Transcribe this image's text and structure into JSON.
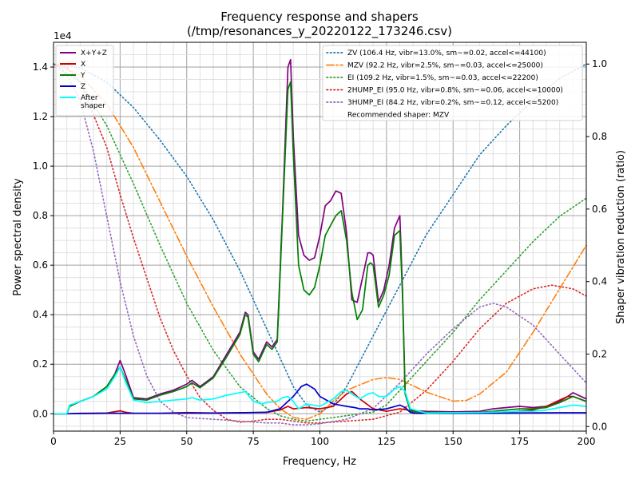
{
  "chart_data": {
    "type": "line",
    "title": "Frequency response and shapers",
    "subtitle": "(/tmp/resonances_y_20220122_173246.csv)",
    "xlabel": "Frequency, Hz",
    "ylabel": "Power spectral density",
    "y2label": "Shaper vibration reduction (ratio)",
    "y_exponent_label": "1e4",
    "xlim": [
      0,
      200
    ],
    "ylim": [
      -0.07,
      1.5
    ],
    "y2lim": [
      -0.0125,
      1.06
    ],
    "x_ticks": [
      0,
      25,
      50,
      75,
      100,
      125,
      150,
      175,
      200
    ],
    "y_ticks": [
      0.0,
      0.2,
      0.4,
      0.6,
      0.8,
      1.0,
      1.2,
      1.4
    ],
    "y_tick_labels": [
      "0.0",
      "0.2",
      "0.4",
      "0.6",
      "0.8",
      "1.0",
      "1.2",
      "1.4"
    ],
    "y2_ticks": [
      0.0,
      0.2,
      0.4,
      0.6,
      0.8,
      1.0
    ],
    "y2_tick_labels": [
      "0.0",
      "0.2",
      "0.4",
      "0.6",
      "0.8",
      "1.0"
    ],
    "grid": true,
    "legend_left_placement": "top-left",
    "legend_right_placement": "top-right",
    "recommended_shaper": "Recommended shaper: MZV",
    "psd_series": [
      {
        "name": "X+Y+Z",
        "color": "#800080",
        "x": [
          0,
          5,
          6,
          10,
          15,
          20,
          23,
          25,
          27,
          30,
          35,
          40,
          45,
          50,
          52,
          55,
          60,
          65,
          70,
          72,
          73,
          75,
          77,
          80,
          82,
          84,
          86,
          88,
          89,
          90,
          92,
          94,
          96,
          98,
          100,
          102,
          104,
          106,
          108,
          110,
          112,
          114,
          116,
          118,
          119,
          120,
          122,
          124,
          126,
          128,
          130,
          131,
          132,
          134,
          136,
          140,
          150,
          160,
          165,
          170,
          175,
          180,
          185,
          190,
          193,
          195,
          200
        ],
        "y": [
          0,
          0,
          0.03,
          0.05,
          0.07,
          0.11,
          0.16,
          0.215,
          0.16,
          0.065,
          0.06,
          0.08,
          0.095,
          0.12,
          0.135,
          0.11,
          0.15,
          0.24,
          0.33,
          0.41,
          0.4,
          0.25,
          0.22,
          0.29,
          0.27,
          0.3,
          0.82,
          1.4,
          1.43,
          1.12,
          0.72,
          0.64,
          0.62,
          0.63,
          0.72,
          0.84,
          0.86,
          0.9,
          0.89,
          0.73,
          0.46,
          0.45,
          0.55,
          0.65,
          0.65,
          0.64,
          0.45,
          0.5,
          0.6,
          0.75,
          0.8,
          0.5,
          0.09,
          0.015,
          0.012,
          0.01,
          0.008,
          0.01,
          0.02,
          0.025,
          0.03,
          0.025,
          0.03,
          0.05,
          0.07,
          0.085,
          0.06
        ]
      },
      {
        "name": "X",
        "color": "#cc0000",
        "x": [
          0,
          5,
          10,
          20,
          25,
          27,
          30,
          40,
          50,
          60,
          70,
          80,
          85,
          88,
          90,
          95,
          100,
          105,
          110,
          112,
          115,
          120,
          125,
          130,
          133,
          135,
          140,
          150,
          170,
          180,
          185,
          190,
          193,
          195,
          200
        ],
        "y": [
          0,
          0,
          0.002,
          0.003,
          0.012,
          0.006,
          0.002,
          0.002,
          0.005,
          0.003,
          0.004,
          0.005,
          0.015,
          0.03,
          0.02,
          0.025,
          0.02,
          0.03,
          0.08,
          0.09,
          0.06,
          0.02,
          0.01,
          0.02,
          0.015,
          0.002,
          0.003,
          0.004,
          0.006,
          0.015,
          0.03,
          0.055,
          0.07,
          0.07,
          0.05
        ]
      },
      {
        "name": "Y",
        "color": "#008000",
        "x": [
          0,
          5,
          6,
          10,
          15,
          20,
          23,
          25,
          27,
          30,
          35,
          40,
          45,
          50,
          52,
          55,
          60,
          65,
          70,
          72,
          73,
          75,
          77,
          80,
          82,
          84,
          86,
          88,
          89,
          90,
          92,
          94,
          96,
          98,
          100,
          102,
          104,
          106,
          108,
          110,
          112,
          114,
          116,
          118,
          119,
          120,
          122,
          124,
          126,
          128,
          130,
          131,
          132,
          134,
          136,
          140,
          150,
          160,
          165,
          170,
          175,
          180,
          185,
          190,
          193,
          195,
          200
        ],
        "y": [
          0,
          0,
          0.03,
          0.05,
          0.07,
          0.11,
          0.16,
          0.19,
          0.14,
          0.06,
          0.055,
          0.075,
          0.09,
          0.11,
          0.125,
          0.105,
          0.145,
          0.23,
          0.32,
          0.4,
          0.39,
          0.24,
          0.21,
          0.28,
          0.26,
          0.29,
          0.8,
          1.31,
          1.34,
          1.05,
          0.6,
          0.5,
          0.48,
          0.51,
          0.6,
          0.72,
          0.76,
          0.8,
          0.82,
          0.7,
          0.49,
          0.38,
          0.42,
          0.6,
          0.61,
          0.6,
          0.43,
          0.48,
          0.56,
          0.72,
          0.74,
          0.48,
          0.08,
          0.01,
          0.008,
          0.006,
          0.005,
          0.006,
          0.01,
          0.015,
          0.02,
          0.02,
          0.025,
          0.045,
          0.06,
          0.07,
          0.05
        ]
      },
      {
        "name": "Z",
        "color": "#0000cc",
        "x": [
          0,
          5,
          10,
          20,
          30,
          40,
          50,
          60,
          70,
          80,
          85,
          88,
          90,
          93,
          95,
          98,
          100,
          105,
          110,
          113,
          115,
          118,
          120,
          125,
          130,
          132,
          134,
          136,
          150,
          170,
          190,
          200
        ],
        "y": [
          0,
          0,
          0.001,
          0.002,
          0.002,
          0.002,
          0.003,
          0.003,
          0.004,
          0.006,
          0.02,
          0.05,
          0.07,
          0.11,
          0.12,
          0.1,
          0.07,
          0.04,
          0.03,
          0.025,
          0.02,
          0.02,
          0.015,
          0.02,
          0.035,
          0.025,
          0.005,
          0.002,
          0.002,
          0.003,
          0.004,
          0.004
        ]
      },
      {
        "name": "After\nshaper",
        "color": "#00ffff",
        "x": [
          0,
          5,
          6,
          10,
          15,
          20,
          23,
          25,
          27,
          30,
          35,
          40,
          45,
          50,
          52,
          55,
          60,
          65,
          70,
          72,
          75,
          78,
          80,
          84,
          86,
          88,
          90,
          92,
          95,
          100,
          105,
          108,
          110,
          112,
          115,
          118,
          120,
          122,
          125,
          128,
          130,
          132,
          134,
          140,
          150,
          160,
          170,
          180,
          185,
          190,
          195,
          200
        ],
        "y": [
          0,
          0,
          0.035,
          0.05,
          0.07,
          0.1,
          0.15,
          0.19,
          0.13,
          0.055,
          0.045,
          0.05,
          0.055,
          0.06,
          0.065,
          0.055,
          0.06,
          0.075,
          0.085,
          0.09,
          0.05,
          0.04,
          0.045,
          0.05,
          0.065,
          0.07,
          0.05,
          0.02,
          0.04,
          0.03,
          0.06,
          0.09,
          0.095,
          0.08,
          0.06,
          0.08,
          0.085,
          0.07,
          0.07,
          0.1,
          0.11,
          0.09,
          0.02,
          0.003,
          0.004,
          0.005,
          0.008,
          0.01,
          0.015,
          0.025,
          0.035,
          0.03
        ]
      }
    ],
    "shaper_series": [
      {
        "name": "ZV (106.4 Hz, vibr=13.0%, sm~=0.02, accel<=44100)",
        "color": "#1f77b4",
        "style": "dotted",
        "x": [
          0,
          10,
          20,
          30,
          40,
          50,
          60,
          70,
          80,
          85,
          90,
          95,
          100,
          105,
          110,
          115,
          120,
          125,
          130,
          140,
          150,
          160,
          170,
          180,
          190,
          200
        ],
        "y": [
          1.0,
          0.99,
          0.95,
          0.88,
          0.79,
          0.69,
          0.57,
          0.43,
          0.27,
          0.19,
          0.11,
          0.06,
          0.04,
          0.06,
          0.11,
          0.18,
          0.25,
          0.32,
          0.39,
          0.53,
          0.64,
          0.75,
          0.83,
          0.9,
          0.96,
          1.0
        ]
      },
      {
        "name": "MZV (92.2 Hz, vibr=2.5%, sm~=0.03, accel<=25000)",
        "color": "#ff7f0e",
        "style": "dashdot",
        "x": [
          0,
          10,
          20,
          30,
          40,
          50,
          60,
          70,
          80,
          85,
          90,
          95,
          100,
          105,
          110,
          120,
          125,
          130,
          140,
          150,
          155,
          160,
          165,
          170,
          180,
          190,
          200
        ],
        "y": [
          1.0,
          0.97,
          0.89,
          0.77,
          0.62,
          0.47,
          0.33,
          0.2,
          0.09,
          0.05,
          0.025,
          0.02,
          0.035,
          0.07,
          0.1,
          0.13,
          0.135,
          0.13,
          0.095,
          0.07,
          0.072,
          0.09,
          0.12,
          0.15,
          0.26,
          0.38,
          0.5
        ]
      },
      {
        "name": "EI (109.2 Hz, vibr=1.5%, sm~=0.03, accel<=22200)",
        "color": "#2ca02c",
        "style": "dotted",
        "x": [
          0,
          10,
          20,
          30,
          40,
          50,
          60,
          70,
          80,
          85,
          90,
          95,
          100,
          105,
          110,
          115,
          120,
          125,
          130,
          140,
          150,
          160,
          170,
          180,
          190,
          200
        ],
        "y": [
          1.0,
          0.95,
          0.83,
          0.67,
          0.5,
          0.34,
          0.21,
          0.11,
          0.05,
          0.03,
          0.02,
          0.015,
          0.02,
          0.025,
          0.03,
          0.035,
          0.04,
          0.06,
          0.1,
          0.18,
          0.26,
          0.35,
          0.43,
          0.51,
          0.58,
          0.63
        ]
      },
      {
        "name": "2HUMP_EI (95.0 Hz, vibr=0.8%, sm~=0.06, accel<=10000)",
        "color": "#d62728",
        "style": "dotted",
        "x": [
          0,
          5,
          10,
          15,
          20,
          25,
          30,
          35,
          40,
          45,
          50,
          55,
          60,
          65,
          70,
          75,
          80,
          85,
          90,
          95,
          100,
          110,
          120,
          130,
          140,
          150,
          160,
          170,
          180,
          187,
          195,
          200
        ],
        "y": [
          1.0,
          0.99,
          0.95,
          0.86,
          0.77,
          0.64,
          0.52,
          0.41,
          0.3,
          0.21,
          0.14,
          0.08,
          0.045,
          0.02,
          0.012,
          0.015,
          0.02,
          0.02,
          0.015,
          0.01,
          0.01,
          0.015,
          0.02,
          0.04,
          0.1,
          0.18,
          0.27,
          0.34,
          0.38,
          0.39,
          0.38,
          0.36
        ]
      },
      {
        "name": "3HUMP_EI (84.2 Hz, vibr=0.2%, sm~=0.12, accel<=5200)",
        "color": "#9467bd",
        "style": "dotted",
        "x": [
          0,
          5,
          10,
          15,
          20,
          25,
          30,
          35,
          40,
          45,
          50,
          60,
          70,
          80,
          85,
          90,
          95,
          100,
          110,
          120,
          130,
          140,
          150,
          160,
          165,
          170,
          180,
          190,
          200
        ],
        "y": [
          1.0,
          0.97,
          0.9,
          0.76,
          0.58,
          0.4,
          0.25,
          0.14,
          0.07,
          0.04,
          0.025,
          0.02,
          0.015,
          0.01,
          0.01,
          0.005,
          0.005,
          0.008,
          0.02,
          0.05,
          0.12,
          0.2,
          0.27,
          0.33,
          0.34,
          0.33,
          0.28,
          0.2,
          0.12
        ]
      }
    ]
  }
}
